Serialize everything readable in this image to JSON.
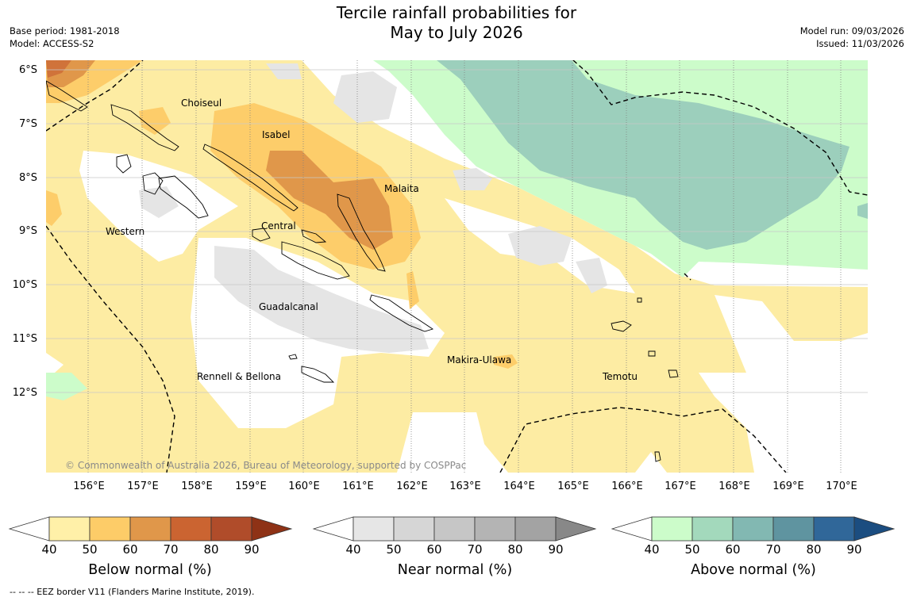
{
  "title": {
    "line1": "Tercile rainfall probabilities for",
    "line2": "May to July 2026"
  },
  "meta_left": {
    "base_period": "Base period: 1981-2018",
    "model": "Model: ACCESS-S2"
  },
  "meta_right": {
    "model_run": "Model run: 09/03/2026",
    "issued": "Issued: 11/03/2026"
  },
  "lat_labels": [
    "6°S",
    "7°S",
    "8°S",
    "9°S",
    "10°S",
    "11°S",
    "12°S"
  ],
  "lon_labels": [
    "156°E",
    "157°E",
    "158°E",
    "159°E",
    "160°E",
    "161°E",
    "162°E",
    "163°E",
    "164°E",
    "165°E",
    "166°E",
    "167°E",
    "168°E",
    "169°E",
    "170°E"
  ],
  "regions": {
    "choiseul": "Choiseul",
    "isabel": "Isabel",
    "malaita": "Malaita",
    "western": "Western",
    "central": "Central",
    "guadalcanal": "Guadalcanal",
    "makira": "Makira-Ulawa",
    "temotu": "Temotu",
    "rennell": "Rennell & Bellona"
  },
  "copyright": "© Commonwealth of Australia 2026, Bureau of Meteorology, supported by COSPPac",
  "colorbars": [
    {
      "title": "Below normal (%)",
      "ticks": [
        "40",
        "50",
        "60",
        "70",
        "80",
        "90"
      ],
      "colors": [
        "#fff0a8",
        "#fdcc68",
        "#e0974a",
        "#cb6431",
        "#b04c2a",
        "#8e3216"
      ]
    },
    {
      "title": "Near normal (%)",
      "ticks": [
        "40",
        "50",
        "60",
        "70",
        "80",
        "90"
      ],
      "colors": [
        "#e6e6e6",
        "#d6d6d6",
        "#c6c6c6",
        "#b4b4b4",
        "#a3a3a3",
        "#888888"
      ]
    },
    {
      "title": "Above normal (%)",
      "ticks": [
        "40",
        "50",
        "60",
        "70",
        "80",
        "90"
      ],
      "colors": [
        "#ccfcca",
        "#a3d9bc",
        "#82b8b2",
        "#5f94a0",
        "#306799",
        "#1b4d80"
      ]
    }
  ],
  "footnote": "--  --  -- EEZ border V11 (Flanders Marine Institute, 2019).",
  "map_colors": {
    "below_40": "#fdeca3",
    "below_50": "#fdcd6a",
    "below_60": "#e0974a",
    "below_70": "#d0733a",
    "near_40": "#e5e5e5",
    "above_40": "#ccfcca",
    "above_50": "#9ccfbc"
  }
}
